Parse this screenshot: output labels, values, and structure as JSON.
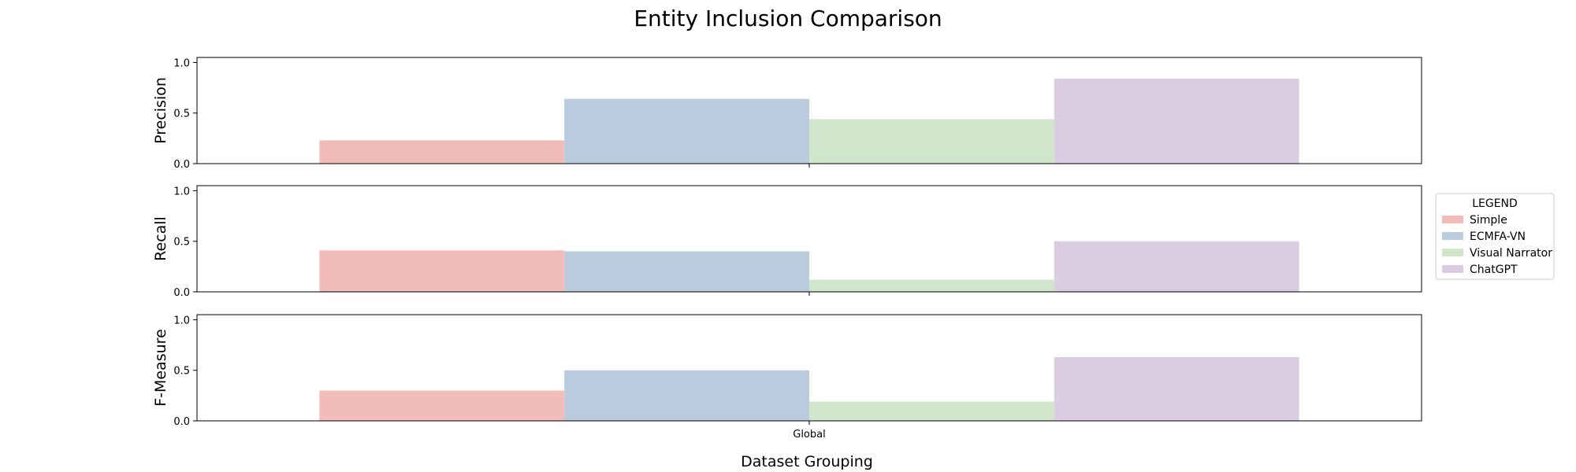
{
  "chart_data": {
    "type": "bar",
    "title": "Entity Inclusion Comparison",
    "xlabel": "Dataset Grouping",
    "categories": [
      "Global"
    ],
    "ylim": [
      0,
      1.05
    ],
    "yticks": [
      "0.0",
      "0.5",
      "1.0"
    ],
    "legend": {
      "title": "LEGEND",
      "placement": "right",
      "entries": [
        "Simple",
        "ECMFA-VN",
        "Visual Narrator",
        "ChatGPT"
      ]
    },
    "colors": [
      "#f2bcb8",
      "#b9cbdc",
      "#d0e6cb",
      "#dacde1"
    ],
    "panels": [
      {
        "ylabel": "Precision",
        "series": [
          {
            "name": "Simple",
            "values": [
              0.23
            ]
          },
          {
            "name": "ECMFA-VN",
            "values": [
              0.64
            ]
          },
          {
            "name": "Visual Narrator",
            "values": [
              0.44
            ]
          },
          {
            "name": "ChatGPT",
            "values": [
              0.84
            ]
          }
        ]
      },
      {
        "ylabel": "Recall",
        "series": [
          {
            "name": "Simple",
            "values": [
              0.41
            ]
          },
          {
            "name": "ECMFA-VN",
            "values": [
              0.4
            ]
          },
          {
            "name": "Visual Narrator",
            "values": [
              0.12
            ]
          },
          {
            "name": "ChatGPT",
            "values": [
              0.5
            ]
          }
        ]
      },
      {
        "ylabel": "F-Measure",
        "series": [
          {
            "name": "Simple",
            "values": [
              0.3
            ]
          },
          {
            "name": "ECMFA-VN",
            "values": [
              0.5
            ]
          },
          {
            "name": "Visual Narrator",
            "values": [
              0.19
            ]
          },
          {
            "name": "ChatGPT",
            "values": [
              0.63
            ]
          }
        ]
      }
    ]
  }
}
